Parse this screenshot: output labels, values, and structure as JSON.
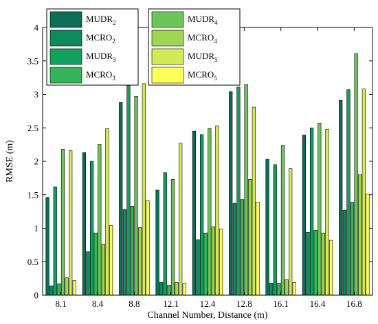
{
  "chart_data": {
    "type": "bar",
    "title": "",
    "xlabel": "Channel Number, Distance (m)",
    "ylabel": "RMSE (m)",
    "ylim": [
      0,
      4
    ],
    "yticks": [
      "0",
      "0.5",
      "1",
      "1.5",
      "2",
      "2.5",
      "3",
      "3.5",
      "4"
    ],
    "grid": false,
    "legend": [
      {
        "position": "top-left",
        "entries": [
          {
            "base": "MUDR",
            "sub": "2",
            "series": 0
          },
          {
            "base": "MCRO",
            "sub": "2",
            "series": 1
          },
          {
            "base": "MUDR",
            "sub": "3",
            "series": 2
          },
          {
            "base": "MCRO",
            "sub": "3",
            "series": 3
          }
        ]
      },
      {
        "position": "top-center",
        "entries": [
          {
            "base": "MUDR",
            "sub": "4",
            "series": 4
          },
          {
            "base": "MCRO",
            "sub": "4",
            "series": 5
          },
          {
            "base": "MUDR",
            "sub": "5",
            "series": 6
          },
          {
            "base": "MCRO",
            "sub": "5",
            "series": 7
          }
        ]
      }
    ],
    "categories": [
      "8.1",
      "8.4",
      "8.8",
      "12.1",
      "12.4",
      "12.8",
      "16.1",
      "16.4",
      "16.8"
    ],
    "series": [
      {
        "name": "MUDR2",
        "color": "#0e6e55",
        "values": [
          1.46,
          2.13,
          2.88,
          1.57,
          2.45,
          3.04,
          2.03,
          2.39,
          2.91
        ]
      },
      {
        "name": "MCRO2",
        "color": "#0f8a5f",
        "values": [
          0.14,
          0.65,
          1.28,
          0.19,
          0.83,
          1.37,
          0.18,
          0.94,
          1.27
        ]
      },
      {
        "name": "MUDR3",
        "color": "#11a05e",
        "values": [
          1.62,
          2.0,
          3.24,
          1.83,
          2.4,
          3.11,
          1.95,
          2.5,
          3.07
        ]
      },
      {
        "name": "MCRO3",
        "color": "#35b45a",
        "values": [
          0.17,
          0.93,
          1.33,
          0.15,
          0.93,
          1.43,
          0.18,
          0.97,
          1.39
        ]
      },
      {
        "name": "MUDR4",
        "color": "#6cc55a",
        "values": [
          2.18,
          2.25,
          2.97,
          1.73,
          2.49,
          3.15,
          2.24,
          2.57,
          3.61
        ]
      },
      {
        "name": "MCRO4",
        "color": "#9fd652",
        "values": [
          0.26,
          0.76,
          1.01,
          0.19,
          1.02,
          1.73,
          0.23,
          0.93,
          1.8
        ]
      },
      {
        "name": "MUDR5",
        "color": "#d3ea57",
        "values": [
          2.16,
          2.49,
          3.16,
          2.27,
          2.53,
          2.81,
          1.89,
          2.48,
          3.08
        ]
      },
      {
        "name": "MCRO5",
        "color": "#ffff5a",
        "values": [
          0.22,
          1.04,
          1.41,
          0.18,
          0.99,
          1.39,
          0.19,
          0.82,
          1.51
        ]
      }
    ]
  }
}
